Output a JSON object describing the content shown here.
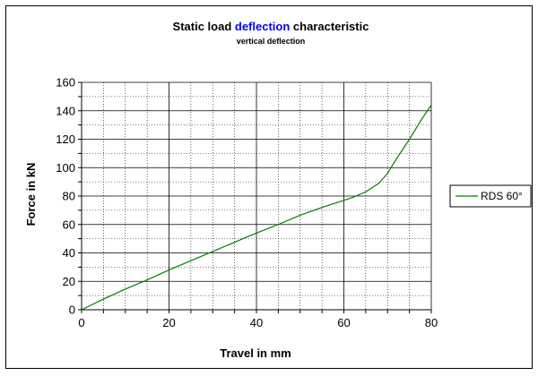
{
  "chart_data": {
    "type": "line",
    "title": {
      "prefix": "Static load ",
      "highlight": "deflection",
      "suffix": " characteristic",
      "highlight_color": "#0000ff"
    },
    "subtitle": "vertical deflection",
    "xlabel": "Travel in mm",
    "ylabel": "Force in kN",
    "xlim": [
      0,
      80
    ],
    "ylim": [
      0,
      160
    ],
    "x_ticks": [
      0,
      20,
      40,
      60,
      80
    ],
    "y_ticks": [
      0,
      20,
      40,
      60,
      80,
      100,
      120,
      140,
      160
    ],
    "x_minor_step": 5,
    "y_minor_step": 10,
    "grid": true,
    "legend_position": "right",
    "series": [
      {
        "name": "RDS 60°",
        "color": "#008000",
        "x": [
          0,
          5,
          10,
          15,
          20,
          25,
          30,
          35,
          40,
          45,
          50,
          55,
          60,
          62,
          65,
          68,
          70,
          72,
          75,
          78,
          80
        ],
        "y": [
          0,
          7.5,
          14.5,
          21,
          28,
          34.5,
          41,
          47.5,
          54,
          60,
          66.5,
          72,
          77,
          79,
          83,
          89,
          96,
          106,
          120,
          135,
          144
        ]
      }
    ]
  }
}
